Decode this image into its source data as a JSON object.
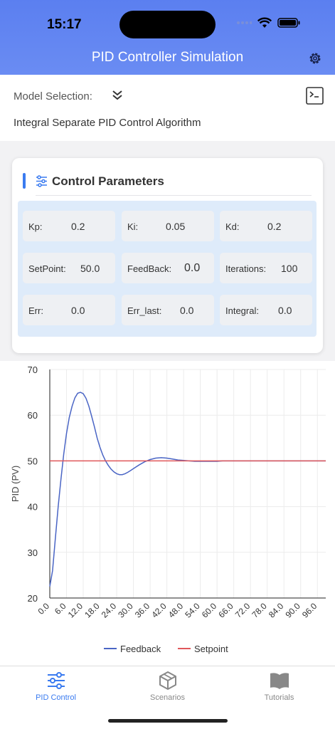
{
  "status_bar": {
    "time": "15:17"
  },
  "header": {
    "title": "PID Controller Simulation"
  },
  "model": {
    "label": "Model Selection:",
    "value": "Integral Separate PID Control Algorithm"
  },
  "params": {
    "title": "Control Parameters",
    "cells": [
      {
        "label": "Kp:",
        "value": "0.2"
      },
      {
        "label": "Ki:",
        "value": "0.05"
      },
      {
        "label": "Kd:",
        "value": "0.2"
      },
      {
        "label": "SetPoint:",
        "value": "50.0"
      },
      {
        "label": "FeedBack:",
        "value": "0.0"
      },
      {
        "label": "Iterations:",
        "value": "100"
      },
      {
        "label": "Err:",
        "value": "0.0"
      },
      {
        "label": "Err_last:",
        "value": "0.0"
      },
      {
        "label": "Integral:",
        "value": "0.0"
      }
    ]
  },
  "chart_data": {
    "type": "line",
    "ylabel": "PID (PV)",
    "xlabel": "",
    "ylim": [
      20,
      70
    ],
    "xlim": [
      0,
      99
    ],
    "yticks": [
      "20",
      "30",
      "40",
      "50",
      "60",
      "70"
    ],
    "xticks": [
      "0.0",
      "6.0",
      "12.0",
      "18.0",
      "24.0",
      "30.0",
      "36.0",
      "42.0",
      "48.0",
      "54.0",
      "60.0",
      "66.0",
      "72.0",
      "78.0",
      "84.0",
      "90.0",
      "96.0"
    ],
    "grid": true,
    "legend": "bottom",
    "series": [
      {
        "name": "Feedback",
        "color": "#4a65c5",
        "x": [
          0,
          1,
          2,
          3,
          4,
          5,
          6,
          7,
          8,
          9,
          10,
          11,
          12,
          13,
          14,
          15,
          16,
          17,
          18,
          19,
          20,
          21,
          22,
          23,
          24,
          25,
          26,
          27,
          28,
          29,
          30,
          32,
          34,
          36,
          38,
          40,
          42,
          44,
          46,
          48,
          50,
          52,
          54,
          56,
          58,
          60,
          62,
          64,
          66,
          68,
          70,
          75,
          80,
          85,
          90,
          95,
          99
        ],
        "y": [
          22.5,
          26,
          33,
          40,
          46,
          51.5,
          56,
          59.5,
          62,
          63.8,
          64.8,
          65,
          64.7,
          63.7,
          62,
          59.8,
          57.5,
          55,
          53,
          51.3,
          50,
          49,
          48.2,
          47.6,
          47.2,
          47,
          47,
          47.2,
          47.5,
          47.9,
          48.3,
          49.1,
          49.8,
          50.3,
          50.6,
          50.7,
          50.6,
          50.4,
          50.2,
          50.1,
          50,
          49.9,
          49.9,
          49.9,
          49.9,
          49.9,
          50,
          50,
          50,
          50,
          50,
          50,
          50,
          50,
          50,
          50,
          50
        ]
      },
      {
        "name": "Setpoint",
        "color": "#e0575b",
        "x": [
          0,
          99
        ],
        "y": [
          50,
          50
        ]
      }
    ]
  },
  "tabs": [
    {
      "label": "PID Control",
      "icon": "sliders-icon",
      "active": true
    },
    {
      "label": "Scenarios",
      "icon": "cube-icon",
      "active": false
    },
    {
      "label": "Tutorials",
      "icon": "book-icon",
      "active": false
    }
  ],
  "colors": {
    "header": "#6a8cf3",
    "accent": "#3a7bf0",
    "panel": "#deebfa"
  }
}
